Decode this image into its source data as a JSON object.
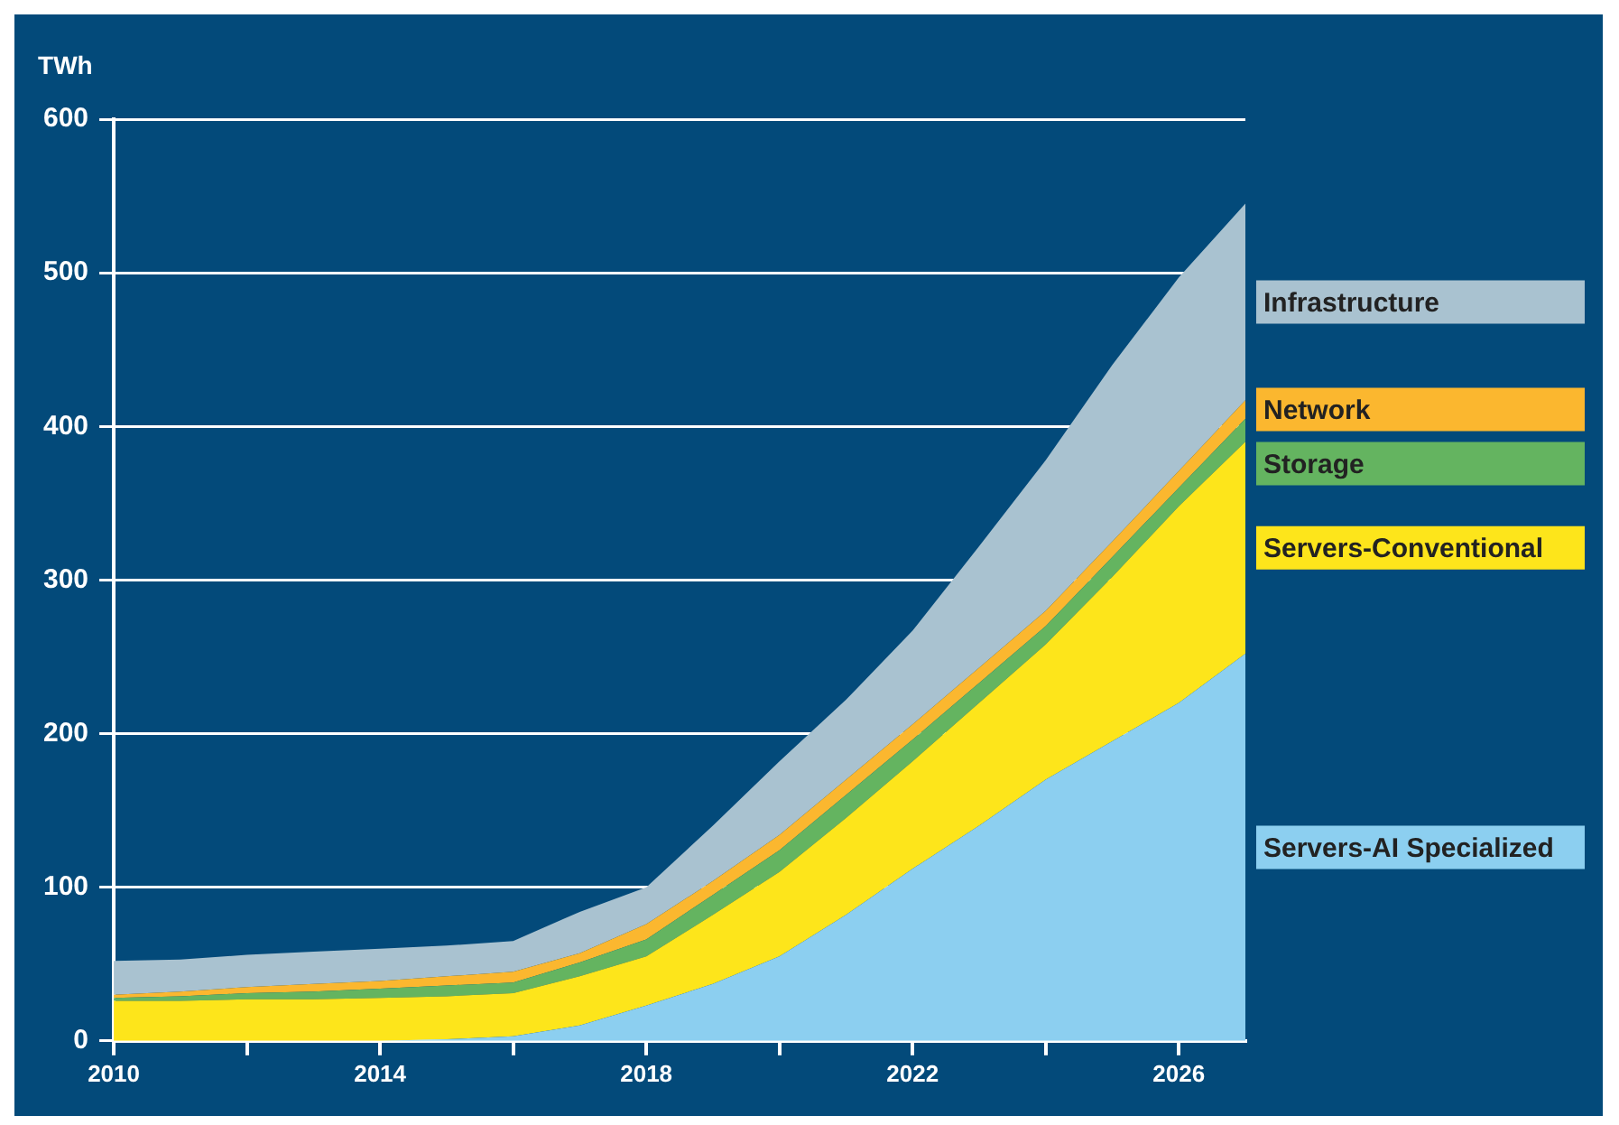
{
  "chart_data": {
    "type": "area",
    "stacked": true,
    "ylabel": "TWh",
    "x": [
      2010,
      2011,
      2012,
      2013,
      2014,
      2015,
      2016,
      2017,
      2018,
      2019,
      2020,
      2021,
      2022,
      2023,
      2024,
      2025,
      2026,
      2027
    ],
    "series": [
      {
        "name": "Servers-AI Specialized",
        "color": "#8ccff0",
        "values": [
          0,
          0,
          0,
          0,
          0,
          1,
          3,
          10,
          23,
          37,
          55,
          82,
          112,
          140,
          170,
          195,
          220,
          252
        ]
      },
      {
        "name": "Servers-Conventional",
        "color": "#fde51b",
        "values": [
          26,
          26,
          27,
          27,
          28,
          28,
          28,
          32,
          32,
          45,
          55,
          63,
          70,
          80,
          88,
          107,
          128,
          138
        ]
      },
      {
        "name": "Storage",
        "color": "#64b460",
        "values": [
          2,
          3,
          4,
          5,
          6,
          7,
          7,
          9,
          11,
          13,
          14,
          15,
          14,
          13,
          12,
          13,
          12,
          15
        ]
      },
      {
        "name": "Network",
        "color": "#fbb72f",
        "values": [
          2,
          3,
          4,
          5,
          5,
          6,
          7,
          6,
          10,
          9,
          10,
          10,
          10,
          10,
          10,
          10,
          11,
          12
        ]
      },
      {
        "name": "Infrastructure",
        "color": "#a9c2d0",
        "values": [
          22,
          21,
          21,
          21,
          21,
          20,
          20,
          27,
          24,
          36,
          48,
          52,
          61,
          79,
          98,
          115,
          126,
          128
        ]
      }
    ],
    "xlim": [
      2010,
      2027
    ],
    "xticks": [
      2010,
      {
        "value": 2012,
        "label": null
      },
      2014,
      {
        "value": 2016,
        "label": null
      },
      2018,
      {
        "value": 2020,
        "label": null
      },
      2022,
      {
        "value": 2024,
        "label": null
      },
      2026
    ],
    "ylim": [
      0,
      600
    ],
    "yticks": [
      0,
      100,
      200,
      300,
      400,
      500,
      600
    ],
    "grid": "y",
    "legend": "right"
  }
}
